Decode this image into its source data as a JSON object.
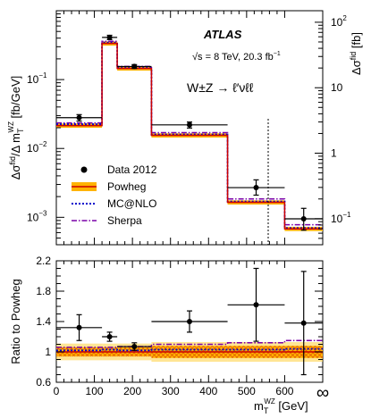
{
  "chart_data": {
    "type": "histogram-with-ratio",
    "main": {
      "ylabel": "Δσ^fid / Δ m_T^WZ [fb/GeV]",
      "yscale": "log",
      "ylim": [
        0.0004,
        1.0
      ],
      "y_ticks": [
        {
          "value": 0.001,
          "base": "10",
          "exp": "−3"
        },
        {
          "value": 0.01,
          "base": "10",
          "exp": "−2"
        },
        {
          "value": 0.1,
          "base": "10",
          "exp": "−1"
        }
      ],
      "right_axis": {
        "label": "Δσ^fid",
        "unit": "fb",
        "ticks": [
          {
            "value": 0.1,
            "label": "10",
            "exp": "−1"
          },
          {
            "value": 1,
            "label": "1",
            "exp": ""
          },
          {
            "value": 10,
            "label": "10",
            "exp": ""
          },
          {
            "value": 100,
            "label": "10",
            "exp": "2"
          }
        ]
      },
      "annotations": {
        "experiment": "ATLAS",
        "energy": "√s = 8 TeV, 20.3 fb",
        "energy_exp": "−1",
        "process": "W±Z → ℓ′νℓℓ"
      },
      "legend": {
        "position": "bottom-left",
        "entries": [
          {
            "label": "Data 2012",
            "style": "marker"
          },
          {
            "label": "Powheg",
            "style": "band"
          },
          {
            "label": "MC@NLO",
            "style": "dotted"
          },
          {
            "label": "Sherpa",
            "style": "dashdot"
          }
        ]
      },
      "bins": [
        {
          "x0": 0,
          "x1": 120,
          "data": 0.028,
          "err_up": 0.003,
          "err_dn": 0.003,
          "powheg": 0.0215,
          "mcnlo": 0.0225,
          "sherpa": 0.0235
        },
        {
          "x0": 120,
          "x1": 160,
          "data": 0.41,
          "err_up": 0.03,
          "err_dn": 0.03,
          "powheg": 0.335,
          "mcnlo": 0.345,
          "sherpa": 0.36
        },
        {
          "x0": 160,
          "x1": 250,
          "data": 0.155,
          "err_up": 0.01,
          "err_dn": 0.01,
          "powheg": 0.145,
          "mcnlo": 0.148,
          "sherpa": 0.155
        },
        {
          "x0": 250,
          "x1": 450,
          "data": 0.022,
          "err_up": 0.0022,
          "err_dn": 0.0022,
          "powheg": 0.0155,
          "mcnlo": 0.016,
          "sherpa": 0.017
        },
        {
          "x0": 450,
          "x1": 600,
          "data": 0.0027,
          "err_up": 0.0008,
          "err_dn": 0.0006,
          "powheg": 0.00165,
          "mcnlo": 0.0017,
          "sherpa": 0.00185
        },
        {
          "x0": 600,
          "x1": "∞",
          "data": 0.00095,
          "err_up": 0.0004,
          "err_dn": 0.0003,
          "powheg": 0.00068,
          "mcnlo": 0.0007,
          "sherpa": 0.00078
        }
      ]
    },
    "ratio": {
      "ylabel": "Ratio to Powheg",
      "ylim": [
        0.6,
        2.2
      ],
      "y_ticks": [
        "0.6",
        "1",
        "1.4",
        "1.8",
        "2.2"
      ],
      "x_ticks": [
        "0",
        "100",
        "200",
        "300",
        "400",
        "500",
        "600",
        "∞"
      ],
      "xlabel": "m_T^WZ [GeV]",
      "bins": [
        {
          "x0": 0,
          "x1": 120,
          "data": 1.32,
          "err": 0.17,
          "mcnlo": 1.02,
          "sherpa": 1.06
        },
        {
          "x0": 120,
          "x1": 160,
          "data": 1.2,
          "err": 0.06,
          "mcnlo": 1.03,
          "sherpa": 1.06
        },
        {
          "x0": 160,
          "x1": 250,
          "data": 1.07,
          "err": 0.05,
          "mcnlo": 1.02,
          "sherpa": 1.07
        },
        {
          "x0": 250,
          "x1": 450,
          "data": 1.4,
          "err": 0.14,
          "mcnlo": 1.03,
          "sherpa": 1.1
        },
        {
          "x0": 450,
          "x1": 600,
          "data": 1.62,
          "err": 0.48,
          "mcnlo": 1.03,
          "sherpa": 1.12
        },
        {
          "x0": 600,
          "x1": "∞",
          "data": 1.38,
          "err": 0.68,
          "mcnlo": 1.04,
          "sherpa": 1.15
        }
      ]
    },
    "colors": {
      "powheg_line": "#cc0000",
      "powheg_band": "#ffb300",
      "mcnlo": "#0000cc",
      "sherpa": "#7a00a8",
      "data": "#000000"
    }
  }
}
